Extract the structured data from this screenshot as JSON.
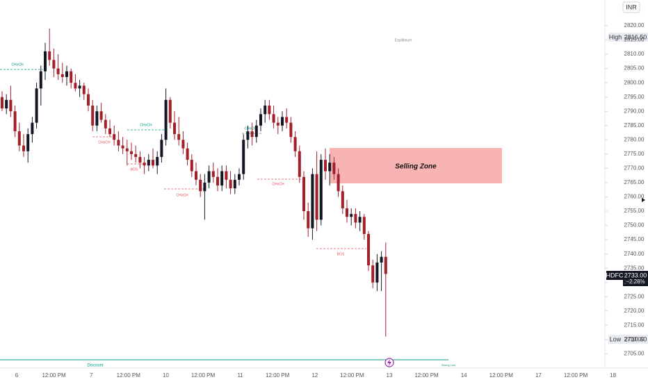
{
  "chart_data": {
    "type": "candlestick",
    "ylim": [
      2700,
      2829
    ],
    "yticks": [
      {
        "value": 2705,
        "label": "2705.00"
      },
      {
        "value": 2710,
        "label": "2710.00"
      },
      {
        "value": 2715,
        "label": "2715.00"
      },
      {
        "value": 2720,
        "label": "2720.00"
      },
      {
        "value": 2725,
        "label": "2725.00"
      },
      {
        "value": 2730,
        "label": "2730.00"
      },
      {
        "value": 2735,
        "label": "2735.00"
      },
      {
        "value": 2740,
        "label": "2740.00"
      },
      {
        "value": 2745,
        "label": "2745.00"
      },
      {
        "value": 2750,
        "label": "2750.00"
      },
      {
        "value": 2755,
        "label": "2755.00"
      },
      {
        "value": 2760,
        "label": "2760.00"
      },
      {
        "value": 2765,
        "label": "2765.00"
      },
      {
        "value": 2770,
        "label": "2770.00"
      },
      {
        "value": 2775,
        "label": "2775.00"
      },
      {
        "value": 2780,
        "label": "2780.00"
      },
      {
        "value": 2785,
        "label": "2785.00"
      },
      {
        "value": 2790,
        "label": "2790.00"
      },
      {
        "value": 2795,
        "label": "2795.00"
      },
      {
        "value": 2800,
        "label": "2800.00"
      },
      {
        "value": 2805,
        "label": "2805.00"
      },
      {
        "value": 2810,
        "label": "2810.00"
      },
      {
        "value": 2815,
        "label": "2815.00"
      },
      {
        "value": 2820,
        "label": "2820.00"
      }
    ],
    "x_labels": [
      "6",
      "12:00 PM",
      "7",
      "12:00 PM",
      "10",
      "12:00 PM",
      "11",
      "12:00 PM",
      "12",
      "12:00 PM",
      "13",
      "12:00 PM",
      "14",
      "12:00 PM",
      "17",
      "12:00 PM",
      "18"
    ],
    "up_color": "#131722",
    "down_color": "#a3202a",
    "candles": [
      [
        2795,
        2797,
        2790,
        2791
      ],
      [
        2791,
        2796,
        2789,
        2794
      ],
      [
        2794,
        2799,
        2788,
        2790
      ],
      [
        2790,
        2792,
        2781,
        2783
      ],
      [
        2783,
        2786,
        2776,
        2778
      ],
      [
        2778,
        2782,
        2774,
        2776
      ],
      [
        2776,
        2784,
        2772,
        2782
      ],
      [
        2782,
        2788,
        2779,
        2786
      ],
      [
        2786,
        2800,
        2784,
        2798
      ],
      [
        2798,
        2806,
        2792,
        2804
      ],
      [
        2804,
        2814,
        2801,
        2811
      ],
      [
        2811,
        2819,
        2806,
        2808
      ],
      [
        2808,
        2812,
        2802,
        2805
      ],
      [
        2805,
        2810,
        2801,
        2803
      ],
      [
        2803,
        2807,
        2800,
        2802
      ],
      [
        2802,
        2806,
        2799,
        2804
      ],
      [
        2804,
        2805,
        2798,
        2800
      ],
      [
        2800,
        2803,
        2797,
        2798
      ],
      [
        2798,
        2801,
        2795,
        2799
      ],
      [
        2799,
        2800,
        2794,
        2796
      ],
      [
        2796,
        2798,
        2790,
        2792
      ],
      [
        2792,
        2794,
        2783,
        2785
      ],
      [
        2785,
        2792,
        2783,
        2790
      ],
      [
        2790,
        2793,
        2786,
        2787
      ],
      [
        2787,
        2789,
        2782,
        2784
      ],
      [
        2784,
        2787,
        2781,
        2782
      ],
      [
        2782,
        2785,
        2778,
        2780
      ],
      [
        2780,
        2783,
        2776,
        2778
      ],
      [
        2778,
        2781,
        2775,
        2777
      ],
      [
        2777,
        2780,
        2771,
        2776
      ],
      [
        2776,
        2779,
        2773,
        2775
      ],
      [
        2775,
        2778,
        2772,
        2774
      ],
      [
        2774,
        2776,
        2770,
        2772
      ],
      [
        2772,
        2774,
        2768,
        2771
      ],
      [
        2771,
        2775,
        2769,
        2773
      ],
      [
        2773,
        2777,
        2770,
        2771
      ],
      [
        2771,
        2776,
        2768,
        2774
      ],
      [
        2774,
        2782,
        2772,
        2780
      ],
      [
        2780,
        2798,
        2778,
        2794
      ],
      [
        2794,
        2795,
        2784,
        2786
      ],
      [
        2786,
        2790,
        2780,
        2782
      ],
      [
        2782,
        2788,
        2778,
        2780
      ],
      [
        2780,
        2783,
        2775,
        2777
      ],
      [
        2777,
        2779,
        2771,
        2773
      ],
      [
        2773,
        2775,
        2767,
        2769
      ],
      [
        2769,
        2772,
        2764,
        2766
      ],
      [
        2766,
        2768,
        2760,
        2762
      ],
      [
        2762,
        2768,
        2752,
        2765
      ],
      [
        2765,
        2771,
        2763,
        2769
      ],
      [
        2769,
        2772,
        2765,
        2767
      ],
      [
        2767,
        2770,
        2762,
        2764
      ],
      [
        2764,
        2771,
        2762,
        2769
      ],
      [
        2769,
        2771,
        2763,
        2766
      ],
      [
        2766,
        2769,
        2761,
        2763
      ],
      [
        2763,
        2768,
        2761,
        2766
      ],
      [
        2766,
        2770,
        2764,
        2768
      ],
      [
        2768,
        2782,
        2766,
        2780
      ],
      [
        2780,
        2785,
        2777,
        2783
      ],
      [
        2783,
        2786,
        2778,
        2781
      ],
      [
        2781,
        2787,
        2779,
        2785
      ],
      [
        2785,
        2791,
        2783,
        2789
      ],
      [
        2789,
        2794,
        2786,
        2792
      ],
      [
        2792,
        2794,
        2787,
        2789
      ],
      [
        2789,
        2792,
        2784,
        2786
      ],
      [
        2786,
        2788,
        2782,
        2785
      ],
      [
        2785,
        2790,
        2783,
        2788
      ],
      [
        2788,
        2791,
        2784,
        2786
      ],
      [
        2786,
        2788,
        2779,
        2781
      ],
      [
        2781,
        2783,
        2774,
        2776
      ],
      [
        2776,
        2778,
        2765,
        2767
      ],
      [
        2767,
        2769,
        2752,
        2755
      ],
      [
        2755,
        2758,
        2746,
        2749
      ],
      [
        2749,
        2770,
        2745,
        2768
      ],
      [
        2768,
        2776,
        2748,
        2752
      ],
      [
        2752,
        2775,
        2750,
        2773
      ],
      [
        2773,
        2777,
        2766,
        2769
      ],
      [
        2769,
        2775,
        2764,
        2772
      ],
      [
        2772,
        2774,
        2766,
        2768
      ],
      [
        2768,
        2770,
        2760,
        2762
      ],
      [
        2762,
        2764,
        2754,
        2756
      ],
      [
        2756,
        2759,
        2751,
        2753
      ],
      [
        2753,
        2756,
        2750,
        2754
      ],
      [
        2754,
        2756,
        2749,
        2751
      ],
      [
        2751,
        2755,
        2748,
        2753
      ],
      [
        2753,
        2754,
        2745,
        2747
      ],
      [
        2747,
        2748,
        2734,
        2736
      ],
      [
        2736,
        2738,
        2728,
        2730
      ],
      [
        2730,
        2740,
        2727,
        2737
      ],
      [
        2737,
        2741,
        2727,
        2739
      ],
      [
        2739,
        2744,
        2711,
        2733
      ]
    ],
    "currency": "INR",
    "high": {
      "label": "High",
      "price": "2816.50"
    },
    "low": {
      "label": "Low",
      "price": "2710.60"
    },
    "last": {
      "symbol": "HDFC",
      "price": "2733.00",
      "change": "−2.28%"
    },
    "annotations": {
      "equilibrium": "Equilibrium",
      "selling_zone": "Selling Zone",
      "discount": "Discount",
      "strong_low": "Strong Low",
      "choch_1": "CHoCH",
      "choch_2": "CHoCH",
      "choch_3": "CHoCH",
      "bos_1": "BOS",
      "choch_4": "CHoCH",
      "choch_5": "CHoCH",
      "choch_6": "CHoCH",
      "bos_2": "BOS"
    }
  }
}
